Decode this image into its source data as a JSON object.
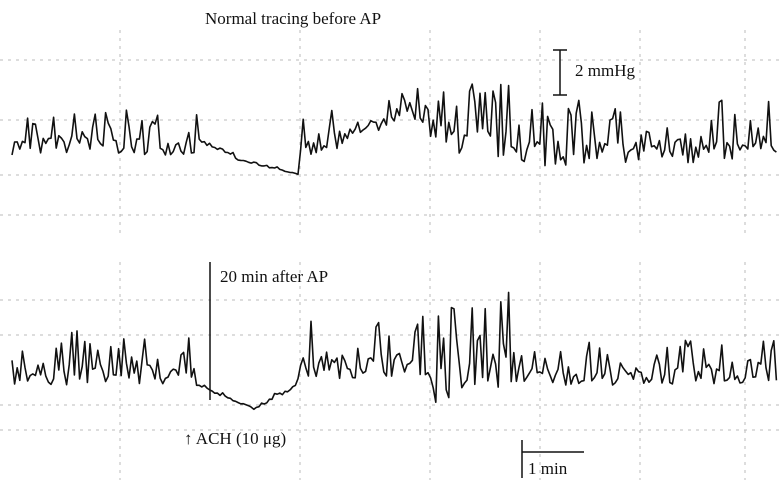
{
  "top_label": "Normal tracing before AP",
  "scale_label": "2 mmHg",
  "bottom_label": "20 min after AP",
  "stimulus_label": "↑ ACH (10 μg)",
  "time_label": "1 min"
}
